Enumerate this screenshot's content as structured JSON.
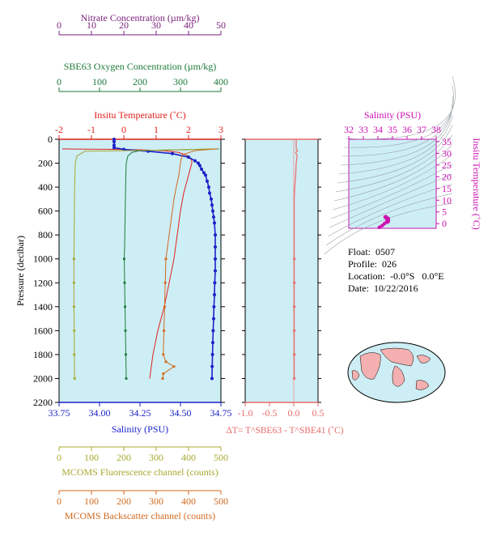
{
  "colors": {
    "panel_bg": "#cdeef5",
    "nitrate": "#7a1f7a",
    "oxygen": "#1e7a3a",
    "temperature": "#e0201b",
    "salinity": "#1a22c8",
    "fluorescence": "#a8a832",
    "backscatter": "#d2691e",
    "delta_t": "#e86a6a",
    "ts": "#cc10b0",
    "map_land": "#f4b0b0"
  },
  "info": {
    "float_label": "Float:",
    "float_value": "0507",
    "profile_label": "Profile:",
    "profile_value": "026",
    "location_label": "Location:",
    "location_value": "-0.0°S   0.0°E",
    "date_label": "Date:",
    "date_value": "10/22/2016"
  },
  "chart_data": [
    {
      "type": "line",
      "id": "main-profile",
      "ylabel": "Pressure (decibar)",
      "ylim": [
        2200,
        0
      ],
      "yticks": [
        0,
        200,
        400,
        600,
        800,
        1000,
        1200,
        1400,
        1600,
        1800,
        2000,
        2200
      ],
      "grid": false,
      "axes": {
        "nitrate": {
          "title": "Nitrate Concentration (µm/kg)",
          "range": [
            0,
            50
          ],
          "ticks": [
            0,
            10,
            20,
            30,
            40,
            50
          ]
        },
        "oxygen": {
          "title": "SBE63 Oxygen Concentration (µm/kg)",
          "range": [
            0,
            400
          ],
          "ticks": [
            0,
            100,
            200,
            300,
            400
          ]
        },
        "temperature": {
          "title": "Insitu Temperature (˚C)",
          "range": [
            -2,
            3
          ],
          "ticks": [
            -2,
            -1,
            0,
            1,
            2,
            3
          ]
        },
        "salinity": {
          "title": "Salinity (PSU)",
          "range": [
            33.75,
            34.75
          ],
          "ticks": [
            "33.75",
            "34.00",
            "34.25",
            "34.50",
            "34.75"
          ]
        },
        "fluorescence": {
          "title": "MCOMS Fluorescence channel (counts)",
          "range": [
            0,
            500
          ],
          "ticks": [
            0,
            100,
            200,
            300,
            400,
            500
          ]
        },
        "backscatter": {
          "title": "MCOMS Backscatter channel (counts)",
          "range": [
            0,
            500
          ],
          "ticks": [
            0,
            100,
            200,
            300,
            400,
            500
          ]
        }
      },
      "series": [
        {
          "name": "Insitu Temperature",
          "axis": "temperature",
          "points": [
            [
              -1.9,
              80
            ],
            [
              -1.5,
              82
            ],
            [
              -0.5,
              84
            ],
            [
              0.5,
              88
            ],
            [
              1.2,
              95
            ],
            [
              1.7,
              110
            ],
            [
              2.0,
              140
            ],
            [
              2.1,
              180
            ],
            [
              2.1,
              200
            ],
            [
              2.05,
              250
            ],
            [
              1.95,
              350
            ],
            [
              1.85,
              450
            ],
            [
              1.75,
              600
            ],
            [
              1.65,
              800
            ],
            [
              1.55,
              1000
            ],
            [
              1.4,
              1200
            ],
            [
              1.25,
              1400
            ],
            [
              1.05,
              1600
            ],
            [
              0.9,
              1800
            ],
            [
              0.8,
              2000
            ]
          ]
        },
        {
          "name": "Salinity",
          "axis": "salinity",
          "points": [
            [
              34.09,
              0
            ],
            [
              34.09,
              20
            ],
            [
              34.09,
              50
            ],
            [
              34.09,
              70
            ],
            [
              34.15,
              85
            ],
            [
              34.3,
              100
            ],
            [
              34.45,
              120
            ],
            [
              34.55,
              150
            ],
            [
              34.59,
              180
            ],
            [
              34.61,
              200
            ],
            [
              34.62,
              220
            ],
            [
              34.63,
              250
            ],
            [
              34.645,
              280
            ],
            [
              34.655,
              300
            ],
            [
              34.665,
              350
            ],
            [
              34.675,
              400
            ],
            [
              34.68,
              450
            ],
            [
              34.69,
              500
            ],
            [
              34.695,
              550
            ],
            [
              34.7,
              600
            ],
            [
              34.705,
              650
            ],
            [
              34.71,
              700
            ],
            [
              34.715,
              800
            ],
            [
              34.715,
              900
            ],
            [
              34.715,
              1000
            ],
            [
              34.715,
              1100
            ],
            [
              34.712,
              1200
            ],
            [
              34.71,
              1300
            ],
            [
              34.707,
              1400
            ],
            [
              34.705,
              1500
            ],
            [
              34.702,
              1600
            ],
            [
              34.7,
              1700
            ],
            [
              34.698,
              1800
            ],
            [
              34.696,
              1900
            ],
            [
              34.695,
              2000
            ]
          ]
        },
        {
          "name": "SBE63 Oxygen",
          "axis": "oxygen",
          "points": [
            [
              395,
              80
            ],
            [
              300,
              88
            ],
            [
              200,
              95
            ],
            [
              180,
              110
            ],
            [
              170,
              140
            ],
            [
              166,
              200
            ],
            [
              165,
              300
            ],
            [
              164,
              500
            ],
            [
              163,
              700
            ],
            [
              162,
              900
            ],
            [
              161,
              1000
            ],
            [
              162,
              1200
            ],
            [
              163,
              1400
            ],
            [
              164,
              1600
            ],
            [
              165,
              1800
            ],
            [
              166,
              2000
            ]
          ]
        },
        {
          "name": "Fluorescence",
          "axis": "fluorescence",
          "points": [
            [
              480,
              80
            ],
            [
              330,
              90
            ],
            [
              80,
              100
            ],
            [
              55,
              140
            ],
            [
              50,
              200
            ],
            [
              48,
              400
            ],
            [
              47,
              700
            ],
            [
              46,
              1000
            ],
            [
              46,
              1200
            ],
            [
              46,
              1400
            ],
            [
              47,
              1600
            ],
            [
              47,
              1800
            ],
            [
              48,
              2000
            ]
          ]
        },
        {
          "name": "Backscatter",
          "axis": "backscatter",
          "points": [
            [
              490,
              80
            ],
            [
              420,
              95
            ],
            [
              380,
              130
            ],
            [
              375,
              200
            ],
            [
              370,
              300
            ],
            [
              362,
              400
            ],
            [
              355,
              500
            ],
            [
              350,
              600
            ],
            [
              345,
              700
            ],
            [
              340,
              800
            ],
            [
              335,
              900
            ],
            [
              330,
              1000
            ],
            [
              328,
              1200
            ],
            [
              326,
              1400
            ],
            [
              324,
              1600
            ],
            [
              322,
              1800
            ],
            [
              330,
              1860
            ],
            [
              355,
              1900
            ],
            [
              322,
              1960
            ],
            [
              320,
              2000
            ]
          ]
        }
      ]
    },
    {
      "type": "line",
      "id": "delta-t",
      "xlabel": "ΔT= T^SBE63 - T^SBE41 (˚C)",
      "xlim": [
        -1.0,
        0.5
      ],
      "xticks": [
        "-1.0",
        "-0.5",
        "0.0",
        "0.5"
      ],
      "ylim": [
        2200,
        0
      ],
      "series": [
        {
          "name": "ΔT",
          "points": [
            [
              0.05,
              0
            ],
            [
              0.05,
              80
            ],
            [
              0.08,
              95
            ],
            [
              0.04,
              110
            ],
            [
              0.07,
              140
            ],
            [
              0.05,
              200
            ],
            [
              0.04,
              300
            ],
            [
              0.02,
              400
            ],
            [
              0.01,
              500
            ],
            [
              0.01,
              600
            ],
            [
              0.01,
              800
            ],
            [
              0.01,
              1000
            ],
            [
              0.01,
              1200
            ],
            [
              0.01,
              1400
            ],
            [
              0.01,
              1600
            ],
            [
              0.01,
              1800
            ],
            [
              0.01,
              2000
            ]
          ]
        }
      ]
    },
    {
      "type": "scatter",
      "id": "ts-diagram",
      "xlabel": "Salinity (PSU)",
      "ylabel": "Insitu Temperature (˚C)",
      "xlim": [
        32,
        38
      ],
      "ylim": [
        -2,
        36
      ],
      "xticks": [
        32,
        33,
        34,
        35,
        36,
        37,
        38
      ],
      "yticks": [
        0,
        5,
        10,
        15,
        20,
        25,
        30,
        35
      ],
      "series": [
        {
          "name": "T-S",
          "points": [
            [
              34.1,
              -1.6
            ],
            [
              34.3,
              -0.8
            ],
            [
              34.45,
              0.0
            ],
            [
              34.6,
              0.8
            ],
            [
              34.65,
              1.4
            ],
            [
              34.68,
              1.8
            ],
            [
              34.7,
              2.0
            ],
            [
              34.71,
              2.1
            ],
            [
              34.72,
              1.9
            ],
            [
              34.72,
              1.6
            ],
            [
              34.71,
              1.2
            ],
            [
              34.7,
              0.9
            ],
            [
              34.69,
              0.8
            ],
            [
              34.62,
              2.2
            ],
            [
              34.55,
              2.5
            ],
            [
              34.5,
              2.8
            ],
            [
              34.55,
              3.0
            ]
          ]
        }
      ]
    }
  ]
}
